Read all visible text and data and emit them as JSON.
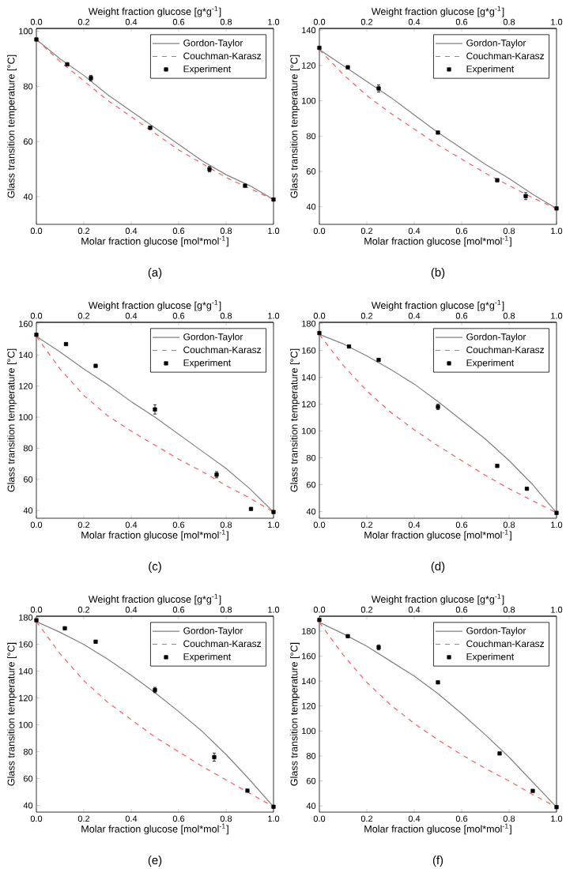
{
  "chart_data": [
    {
      "type": "line",
      "annotations": [
        "(a)"
      ],
      "xlabel": "Molar fraction glucose [mol*mol$^{-1}$]",
      "ylabel": "Glass transition temperature [°C]",
      "x2label": "Weight fraction glucose [g*g$^{-1}$]",
      "xlim": [
        0,
        1
      ],
      "xticks": [
        {
          "value": 0,
          "label": "0.0"
        },
        {
          "value": 0.2,
          "label": "0.2"
        },
        {
          "value": 0.4,
          "label": "0.4"
        },
        {
          "value": 0.6,
          "label": "0.6"
        },
        {
          "value": 0.8,
          "label": "0.8"
        },
        {
          "value": 1,
          "label": "1.0"
        }
      ],
      "x2lim": [
        0,
        1
      ],
      "x2ticks": [
        {
          "value": 0,
          "label": "0.0"
        },
        {
          "value": 0.2,
          "label": "0.2"
        },
        {
          "value": 0.4,
          "label": "0.4"
        },
        {
          "value": 0.6,
          "label": "0.6"
        },
        {
          "value": 0.8,
          "label": "0.8"
        },
        {
          "value": 1,
          "label": "1.0"
        }
      ],
      "ylim": [
        30,
        101
      ],
      "yticks": [
        40,
        60,
        80,
        100
      ],
      "legend": "top right",
      "series": [
        {
          "name": "Gordon-Taylor",
          "type": "line",
          "color": "#808080",
          "line_style": "solid",
          "x": [
            0,
            0.1,
            0.2,
            0.3,
            0.4,
            0.5,
            0.6,
            0.7,
            0.8,
            0.9,
            1
          ],
          "values": [
            97,
            90,
            84,
            77,
            71,
            65,
            59,
            53,
            48,
            44,
            39
          ]
        },
        {
          "name": "Couchman-Karasz",
          "type": "line",
          "color": "#ff5a5a",
          "line_style": "dashed",
          "x": [
            0,
            0.1,
            0.2,
            0.3,
            0.4,
            0.5,
            0.6,
            0.7,
            0.8,
            0.9,
            1
          ],
          "values": [
            97,
            89,
            82,
            75,
            69,
            63,
            57,
            52,
            47,
            43,
            39
          ]
        },
        {
          "name": "Experiment",
          "type": "scatter",
          "color": "#000000",
          "marker": "square",
          "x": [
            0,
            0.13,
            0.23,
            0.48,
            0.73,
            0.88,
            1
          ],
          "values": [
            97,
            88,
            83,
            65,
            50,
            44,
            39
          ],
          "errors": [
            null,
            null,
            1,
            null,
            1,
            null,
            null
          ]
        }
      ]
    },
    {
      "type": "line",
      "annotations": [
        "(b)"
      ],
      "xlabel": "Molar fraction glucose [mol*mol$^{-1}$]",
      "ylabel": "Glass transition temperature [°C]",
      "x2label": "Weight fraction glucose [g*g$^{-1}$]",
      "xlim": [
        0,
        1
      ],
      "xticks": [
        {
          "value": 0,
          "label": "0.0"
        },
        {
          "value": 0.2,
          "label": "0.2"
        },
        {
          "value": 0.4,
          "label": "0.4"
        },
        {
          "value": 0.6,
          "label": "0.6"
        },
        {
          "value": 0.8,
          "label": "0.8"
        },
        {
          "value": 1,
          "label": "1.0"
        }
      ],
      "x2lim": [
        0,
        1
      ],
      "x2ticks": [
        {
          "value": 0,
          "label": "0.0"
        },
        {
          "value": 0.2,
          "label": "0.2"
        },
        {
          "value": 0.4,
          "label": "0.4"
        },
        {
          "value": 0.6,
          "label": "0.6"
        },
        {
          "value": 0.8,
          "label": "0.8"
        },
        {
          "value": 1,
          "label": "1.0"
        }
      ],
      "ylim": [
        30,
        141
      ],
      "yticks": [
        40,
        60,
        80,
        100,
        120,
        140
      ],
      "legend": "top right",
      "series": [
        {
          "name": "Gordon-Taylor",
          "type": "line",
          "color": "#808080",
          "line_style": "solid",
          "x": [
            0,
            0.1,
            0.2,
            0.3,
            0.4,
            0.5,
            0.6,
            0.7,
            0.8,
            0.9,
            1
          ],
          "values": [
            129,
            120,
            111,
            102,
            92,
            82,
            73,
            64,
            56,
            47,
            39
          ]
        },
        {
          "name": "Couchman-Karasz",
          "type": "line",
          "color": "#ff5a5a",
          "line_style": "dashed",
          "x": [
            0,
            0.1,
            0.2,
            0.3,
            0.4,
            0.5,
            0.6,
            0.7,
            0.8,
            0.9,
            1
          ],
          "values": [
            129,
            115,
            103,
            93,
            84,
            75,
            67,
            59,
            52,
            45,
            39
          ]
        },
        {
          "name": "Experiment",
          "type": "scatter",
          "color": "#000000",
          "marker": "square",
          "x": [
            0,
            0.12,
            0.25,
            0.5,
            0.75,
            0.87,
            1
          ],
          "values": [
            130,
            119,
            107,
            82,
            55,
            46,
            39
          ],
          "errors": [
            null,
            null,
            2,
            null,
            null,
            2,
            null
          ]
        }
      ]
    },
    {
      "type": "line",
      "annotations": [
        "(c)"
      ],
      "xlabel": "Molar fraction glucose [mol*mol$^{-1}$]",
      "ylabel": "Glass transition temperature [°C]",
      "x2label": "Weight fraction glucose [g*g$^{-1}$]",
      "xlim": [
        0,
        1
      ],
      "xticks": [
        {
          "value": 0,
          "label": "0.0"
        },
        {
          "value": 0.2,
          "label": "0.2"
        },
        {
          "value": 0.4,
          "label": "0.4"
        },
        {
          "value": 0.6,
          "label": "0.6"
        },
        {
          "value": 0.8,
          "label": "0.8"
        },
        {
          "value": 1,
          "label": "1.0"
        }
      ],
      "x2lim": [
        0,
        1
      ],
      "x2ticks": [
        {
          "value": 0,
          "label": "0.0"
        },
        {
          "value": 0.2,
          "label": "0.2"
        },
        {
          "value": 0.4,
          "label": "0.4"
        },
        {
          "value": 0.6,
          "label": "0.6"
        },
        {
          "value": 0.8,
          "label": "0.8"
        },
        {
          "value": 1,
          "label": "1.0"
        }
      ],
      "ylim": [
        35,
        161
      ],
      "yticks": [
        40,
        60,
        80,
        100,
        120,
        140,
        160
      ],
      "legend": "top right",
      "series": [
        {
          "name": "Gordon-Taylor",
          "type": "line",
          "color": "#808080",
          "line_style": "solid",
          "x": [
            0,
            0.1,
            0.2,
            0.3,
            0.4,
            0.5,
            0.6,
            0.7,
            0.8,
            0.9,
            1
          ],
          "values": [
            152,
            142,
            131,
            121,
            110,
            100,
            89,
            78,
            67,
            54,
            39
          ]
        },
        {
          "name": "Couchman-Karasz",
          "type": "line",
          "color": "#ff5a5a",
          "line_style": "dashed",
          "x": [
            0,
            0.1,
            0.2,
            0.3,
            0.4,
            0.5,
            0.6,
            0.7,
            0.8,
            0.9,
            1
          ],
          "values": [
            152,
            131,
            114,
            101,
            91,
            82,
            73,
            65,
            56,
            48,
            39
          ]
        },
        {
          "name": "Experiment",
          "type": "scatter",
          "color": "#000000",
          "marker": "square",
          "x": [
            0,
            0.125,
            0.25,
            0.5,
            0.76,
            0.905,
            1
          ],
          "values": [
            153,
            147,
            133,
            105,
            63,
            41,
            39
          ],
          "errors": [
            null,
            null,
            null,
            3,
            2,
            null,
            null
          ]
        }
      ]
    },
    {
      "type": "line",
      "annotations": [
        "(d)"
      ],
      "xlabel": "Molar fraction glucose [mol*mol$^{-1}$]",
      "ylabel": "Glass transition temperature [°C]",
      "x2label": "Weight fraction glucose [g*g$^{-1}$]",
      "xlim": [
        0,
        1
      ],
      "xticks": [
        {
          "value": 0,
          "label": "0.0"
        },
        {
          "value": 0.2,
          "label": "0.2"
        },
        {
          "value": 0.4,
          "label": "0.4"
        },
        {
          "value": 0.6,
          "label": "0.6"
        },
        {
          "value": 0.8,
          "label": "0.8"
        },
        {
          "value": 1,
          "label": "1.0"
        }
      ],
      "x2lim": [
        0,
        1
      ],
      "x2ticks": [
        {
          "value": 0,
          "label": "0.0"
        },
        {
          "value": 0.2,
          "label": "0.2"
        },
        {
          "value": 0.4,
          "label": "0.4"
        },
        {
          "value": 0.6,
          "label": "0.6"
        },
        {
          "value": 0.8,
          "label": "0.8"
        },
        {
          "value": 1,
          "label": "1.0"
        }
      ],
      "ylim": [
        35,
        181
      ],
      "yticks": [
        40,
        60,
        80,
        100,
        120,
        140,
        160,
        180
      ],
      "legend": "top right",
      "series": [
        {
          "name": "Gordon-Taylor",
          "type": "line",
          "color": "#808080",
          "line_style": "solid",
          "x": [
            0,
            0.1,
            0.2,
            0.3,
            0.4,
            0.5,
            0.6,
            0.7,
            0.8,
            0.9,
            1
          ],
          "values": [
            172,
            165,
            156,
            146,
            135,
            122,
            108,
            94,
            78,
            60,
            39
          ]
        },
        {
          "name": "Couchman-Karasz",
          "type": "line",
          "color": "#ff5a5a",
          "line_style": "dashed",
          "x": [
            0,
            0.1,
            0.2,
            0.3,
            0.4,
            0.5,
            0.6,
            0.7,
            0.8,
            0.9,
            1
          ],
          "values": [
            172,
            149,
            130,
            114,
            101,
            89,
            78,
            67,
            57,
            48,
            39
          ]
        },
        {
          "name": "Experiment",
          "type": "scatter",
          "color": "#000000",
          "marker": "square",
          "x": [
            0,
            0.125,
            0.25,
            0.5,
            0.75,
            0.875,
            1
          ],
          "values": [
            173,
            163,
            153,
            118,
            74,
            57,
            39
          ],
          "errors": [
            null,
            null,
            null,
            2,
            null,
            null,
            null
          ]
        }
      ]
    },
    {
      "type": "line",
      "annotations": [
        "(e)"
      ],
      "xlabel": "Molar fraction glucose [mol*mol$^{-1}$]",
      "ylabel": "Glass transition temperature [°C]",
      "x2label": "Weight fraction glucose [g*g$^{-1}$]",
      "xlim": [
        0,
        1
      ],
      "xticks": [
        {
          "value": 0,
          "label": "0.0"
        },
        {
          "value": 0.2,
          "label": "0.2"
        },
        {
          "value": 0.4,
          "label": "0.4"
        },
        {
          "value": 0.6,
          "label": "0.6"
        },
        {
          "value": 0.8,
          "label": "0.8"
        },
        {
          "value": 1,
          "label": "1.0"
        }
      ],
      "x2lim": [
        0,
        1
      ],
      "x2ticks": [
        {
          "value": 0,
          "label": "0.0"
        },
        {
          "value": 0.2,
          "label": "0.2"
        },
        {
          "value": 0.4,
          "label": "0.4"
        },
        {
          "value": 0.6,
          "label": "0.6"
        },
        {
          "value": 0.8,
          "label": "0.8"
        },
        {
          "value": 1,
          "label": "1.0"
        }
      ],
      "ylim": [
        35,
        181
      ],
      "yticks": [
        40,
        60,
        80,
        100,
        120,
        140,
        160,
        180
      ],
      "legend": "top right",
      "series": [
        {
          "name": "Gordon-Taylor",
          "type": "line",
          "color": "#808080",
          "line_style": "solid",
          "x": [
            0,
            0.1,
            0.2,
            0.3,
            0.4,
            0.5,
            0.6,
            0.7,
            0.8,
            0.9,
            1
          ],
          "values": [
            177,
            169,
            160,
            149,
            137,
            124,
            110,
            95,
            78,
            59,
            39
          ]
        },
        {
          "name": "Couchman-Karasz",
          "type": "line",
          "color": "#ff5a5a",
          "line_style": "dashed",
          "x": [
            0,
            0.1,
            0.2,
            0.3,
            0.4,
            0.5,
            0.6,
            0.7,
            0.8,
            0.9,
            1
          ],
          "values": [
            177,
            153,
            133,
            117,
            104,
            91,
            80,
            69,
            59,
            49,
            39
          ]
        },
        {
          "name": "Experiment",
          "type": "scatter",
          "color": "#000000",
          "marker": "square",
          "x": [
            0,
            0.12,
            0.25,
            0.5,
            0.75,
            0.89,
            1
          ],
          "values": [
            178,
            172,
            162,
            126,
            76,
            51,
            39
          ],
          "errors": [
            null,
            null,
            null,
            2,
            3,
            null,
            null
          ]
        }
      ]
    },
    {
      "type": "line",
      "annotations": [
        "(f)"
      ],
      "xlabel": "Molar fraction glucose [mol*mol$^{-1}$]",
      "ylabel": "Glass transition temperature [°C]",
      "x2label": "Weight fraction glucose [g*g$^{-1}$]",
      "xlim": [
        0,
        1
      ],
      "xticks": [
        {
          "value": 0,
          "label": "0.0"
        },
        {
          "value": 0.2,
          "label": "0.2"
        },
        {
          "value": 0.4,
          "label": "0.4"
        },
        {
          "value": 0.6,
          "label": "0.6"
        },
        {
          "value": 0.8,
          "label": "0.8"
        },
        {
          "value": 1,
          "label": "1.0"
        }
      ],
      "x2lim": [
        0,
        1
      ],
      "x2ticks": [
        {
          "value": 0,
          "label": "0.0"
        },
        {
          "value": 0.2,
          "label": "0.2"
        },
        {
          "value": 0.4,
          "label": "0.4"
        },
        {
          "value": 0.6,
          "label": "0.6"
        },
        {
          "value": 0.8,
          "label": "0.8"
        },
        {
          "value": 1,
          "label": "1.0"
        }
      ],
      "ylim": [
        35,
        192
      ],
      "yticks": [
        40,
        60,
        80,
        100,
        120,
        140,
        160,
        180
      ],
      "legend": "top right",
      "series": [
        {
          "name": "Gordon-Taylor",
          "type": "line",
          "color": "#808080",
          "line_style": "solid",
          "x": [
            0,
            0.1,
            0.2,
            0.3,
            0.4,
            0.5,
            0.6,
            0.7,
            0.8,
            0.9,
            1
          ],
          "values": [
            187,
            178,
            168,
            156,
            144,
            130,
            114,
            97,
            79,
            59,
            39
          ]
        },
        {
          "name": "Couchman-Karasz",
          "type": "line",
          "color": "#ff5a5a",
          "line_style": "dashed",
          "x": [
            0,
            0.1,
            0.2,
            0.3,
            0.4,
            0.5,
            0.6,
            0.7,
            0.8,
            0.9,
            1
          ],
          "values": [
            187,
            161,
            139,
            121,
            106,
            93,
            81,
            70,
            60,
            49,
            39
          ]
        },
        {
          "name": "Experiment",
          "type": "scatter",
          "color": "#000000",
          "marker": "square",
          "x": [
            0,
            0.12,
            0.25,
            0.5,
            0.76,
            0.9,
            1
          ],
          "values": [
            189,
            176,
            167,
            139,
            82,
            52,
            39
          ],
          "errors": [
            null,
            null,
            2,
            null,
            null,
            null,
            null
          ]
        }
      ]
    }
  ]
}
